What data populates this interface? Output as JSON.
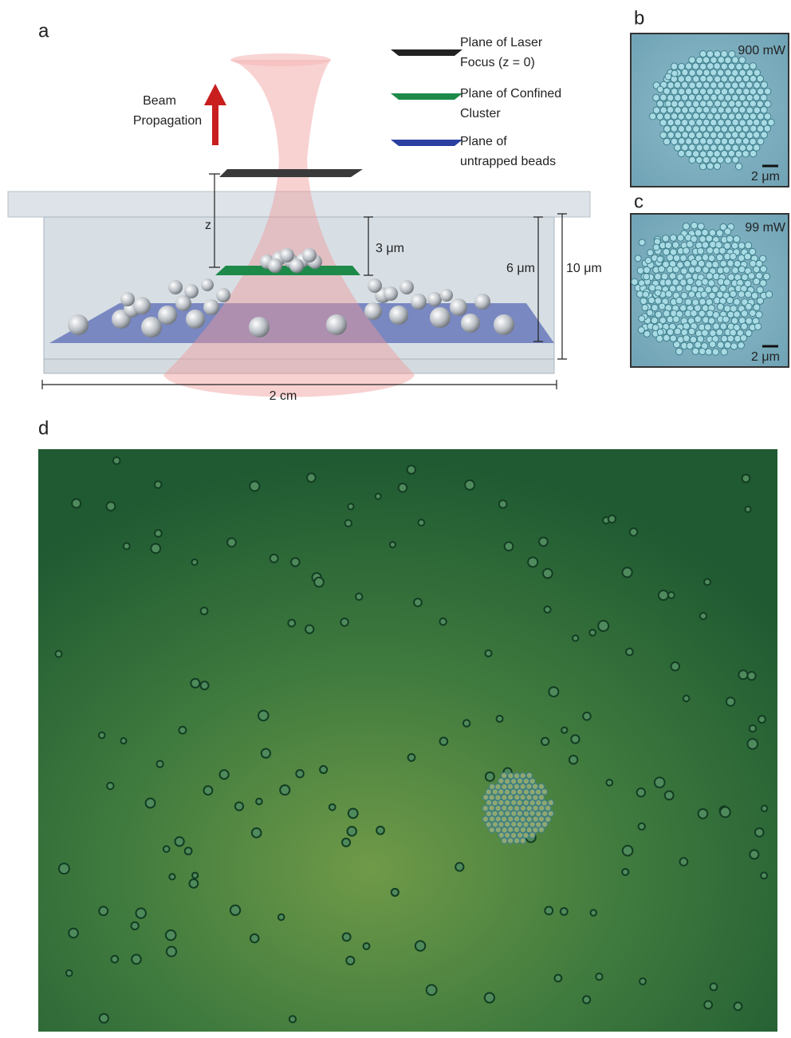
{
  "panels": {
    "a": {
      "label": "a",
      "beam_label": [
        "Beam",
        "Propagation"
      ],
      "legend": [
        {
          "label": [
            "Plane of Laser",
            "Focus (z = 0)"
          ]
        },
        {
          "label": [
            "Plane of Confined",
            "Cluster"
          ]
        },
        {
          "label": [
            "Plane of",
            "untrapped beads"
          ]
        }
      ],
      "dimensions": {
        "z": "z",
        "cluster_height": "3 μm",
        "bead_plane_height": "6 μm",
        "chamber_height": "10 μm",
        "width": "2 cm"
      }
    },
    "b": {
      "label": "b",
      "power": "900 mW",
      "scale_bar": "2 μm"
    },
    "c": {
      "label": "c",
      "power": "99 mW",
      "scale_bar": "2 μm"
    },
    "d": {
      "label": "d"
    }
  }
}
